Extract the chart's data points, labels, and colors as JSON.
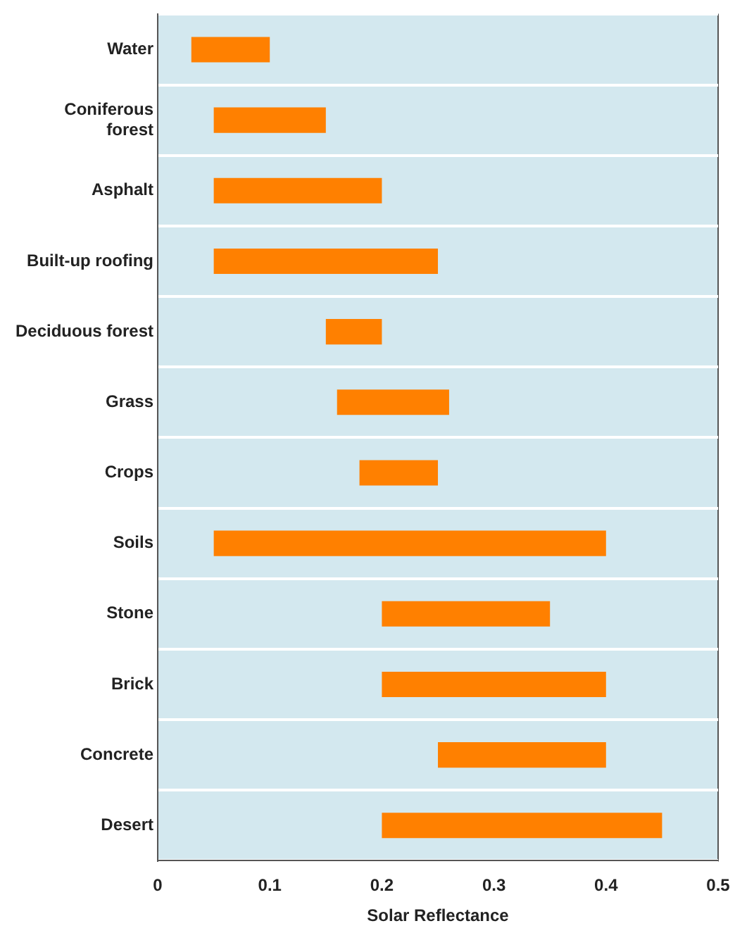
{
  "chart_data": {
    "type": "bar",
    "orientation": "horizontal",
    "xlabel": "Solar Reflectance",
    "categories": [
      "Water",
      [
        "Coniferous",
        "forest"
      ],
      "Asphalt",
      "Built-up roofing",
      "Deciduous forest",
      "Grass",
      "Crops",
      "Soils",
      "Stone",
      "Brick",
      "Concrete",
      "Desert"
    ],
    "base": [
      0.03,
      0.05,
      0.05,
      0.05,
      0.15,
      0.16,
      0.18,
      0.05,
      0.2,
      0.2,
      0.25,
      0.2
    ],
    "values": [
      0.07,
      0.1,
      0.15,
      0.2,
      0.05,
      0.1,
      0.07,
      0.35,
      0.15,
      0.2,
      0.15,
      0.25
    ],
    "color": "#ff8000",
    "xlim": [
      0,
      0.5
    ],
    "xticks": [
      0,
      0.1,
      0.2,
      0.3,
      0.4,
      0.5
    ],
    "grid": "y",
    "legend": false
  }
}
